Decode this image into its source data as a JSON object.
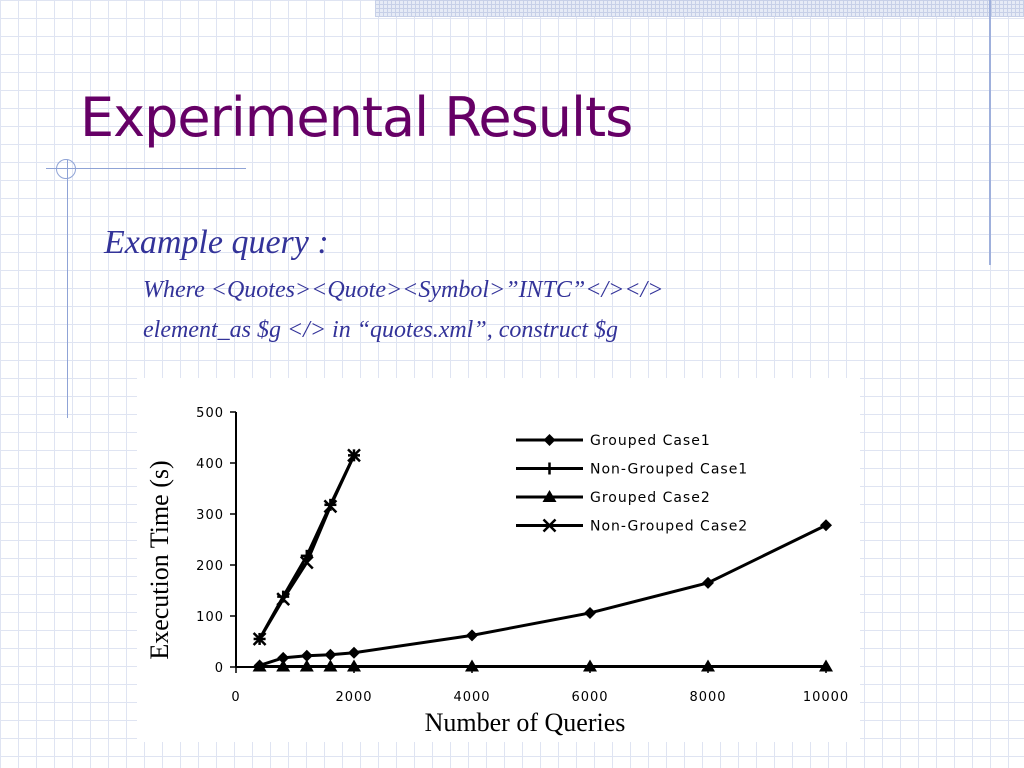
{
  "slide": {
    "title": "Experimental Results",
    "subtitle": "Example query :",
    "query_line1": "Where <Quotes><Quote><Symbol>”INTC”</></>",
    "query_line2": "element_as $g </> in “quotes.xml”, construct $g"
  },
  "colors": {
    "title": "#660066",
    "body_text": "#333399",
    "grid": "#dfe4f2",
    "series": "#000000"
  },
  "chart_data": {
    "type": "line",
    "title": "",
    "xlabel": "Number of Queries",
    "ylabel": "Execution Time (s)",
    "xlim": [
      0,
      10000
    ],
    "ylim": [
      0,
      500
    ],
    "x_ticks": [
      "0",
      "2000",
      "4000",
      "6000",
      "8000",
      "10000"
    ],
    "y_ticks": [
      "0",
      "100",
      "200",
      "300",
      "400",
      "500"
    ],
    "legend_position": "top-right",
    "grid": false,
    "series": [
      {
        "name": "Grouped Case1",
        "marker": "diamond",
        "points": [
          [
            400,
            3
          ],
          [
            800,
            18
          ],
          [
            1200,
            22
          ],
          [
            1600,
            24
          ],
          [
            2000,
            28
          ],
          [
            4000,
            62
          ],
          [
            6000,
            106
          ],
          [
            8000,
            165
          ],
          [
            10000,
            278
          ]
        ]
      },
      {
        "name": "Non-Grouped Case1",
        "marker": "plus",
        "points": [
          [
            400,
            55
          ],
          [
            800,
            138
          ],
          [
            1200,
            218
          ],
          [
            1600,
            318
          ],
          [
            2000,
            415
          ]
        ]
      },
      {
        "name": "Grouped Case2",
        "marker": "triangle",
        "points": [
          [
            400,
            1
          ],
          [
            800,
            1
          ],
          [
            1200,
            1
          ],
          [
            1600,
            1
          ],
          [
            2000,
            1
          ],
          [
            4000,
            1
          ],
          [
            6000,
            1
          ],
          [
            8000,
            1
          ],
          [
            10000,
            1
          ]
        ]
      },
      {
        "name": "Non-Grouped Case2",
        "marker": "x",
        "points": [
          [
            400,
            55
          ],
          [
            800,
            133
          ],
          [
            1200,
            205
          ],
          [
            1600,
            315
          ],
          [
            2000,
            415
          ]
        ]
      }
    ]
  }
}
